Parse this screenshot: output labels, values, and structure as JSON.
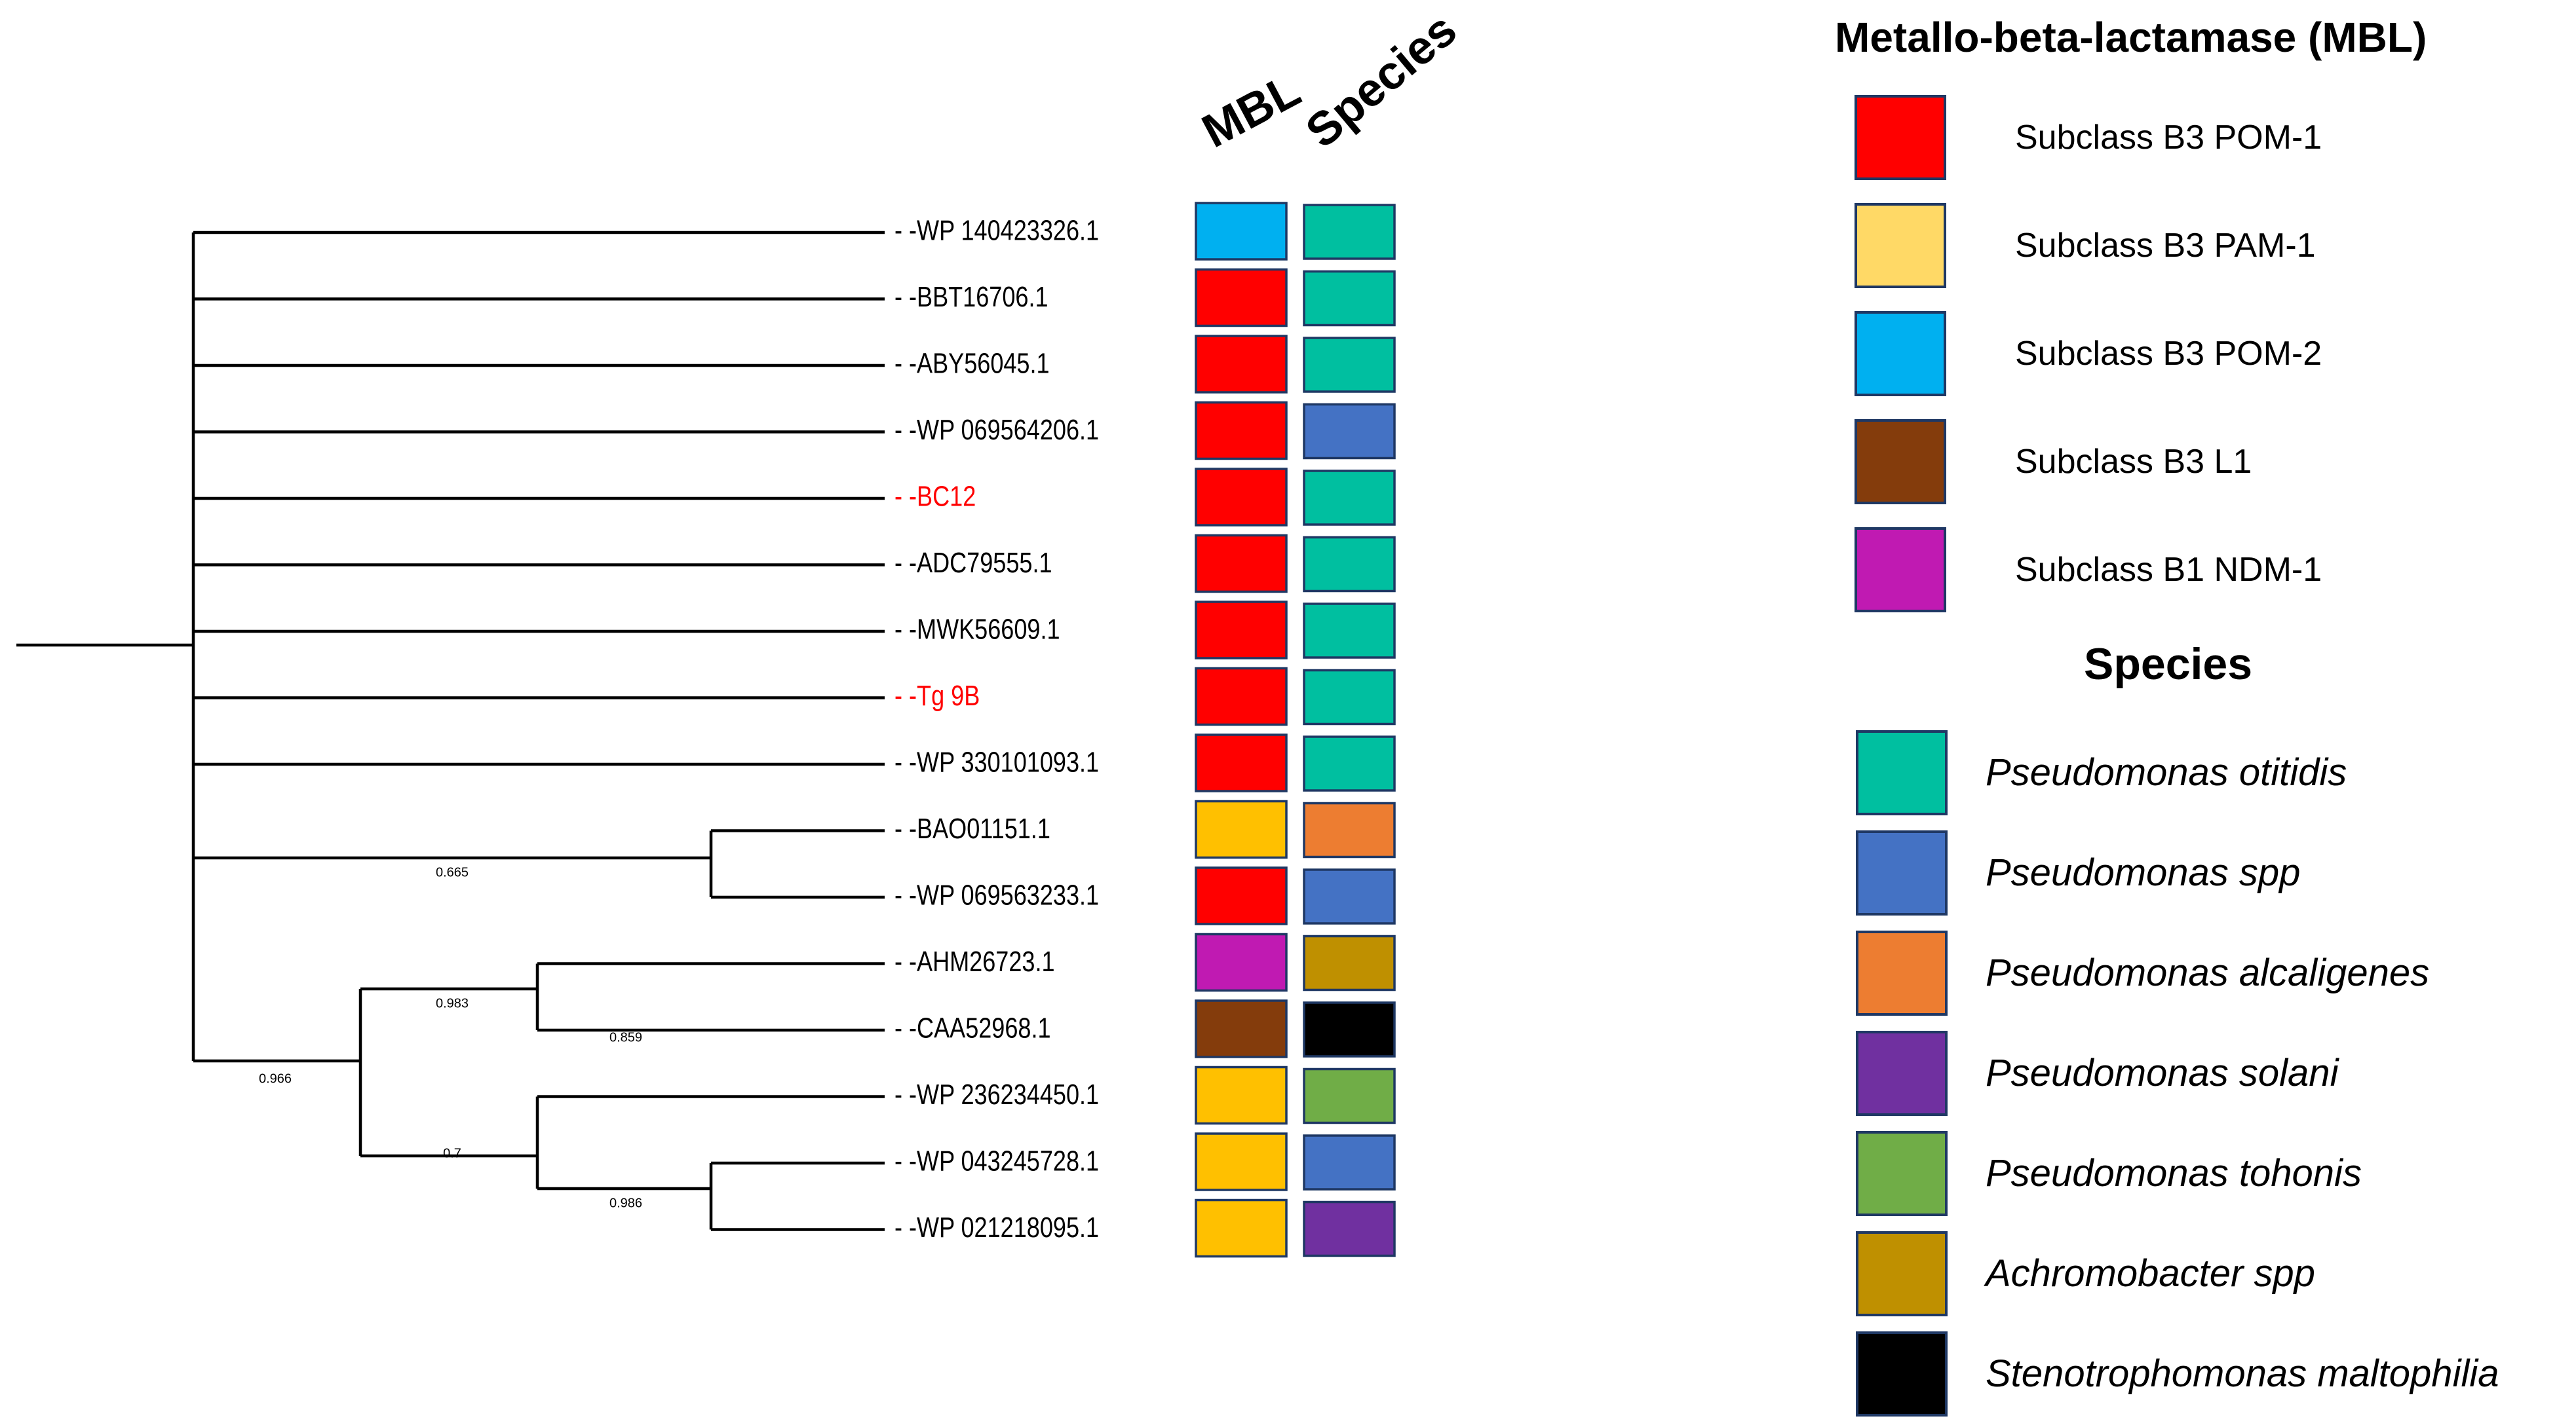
{
  "tree": {
    "leaves": [
      {
        "id": "WP 140423326.1",
        "highlight": false,
        "mbl": "Subclass B3 POM-2",
        "species": "Pseudomonas otitidis"
      },
      {
        "id": "BBT16706.1",
        "highlight": false,
        "mbl": "Subclass B3 POM-1",
        "species": "Pseudomonas otitidis"
      },
      {
        "id": "ABY56045.1",
        "highlight": false,
        "mbl": "Subclass B3 POM-1",
        "species": "Pseudomonas otitidis"
      },
      {
        "id": "WP 069564206.1",
        "highlight": false,
        "mbl": "Subclass B3 POM-1",
        "species": "Pseudomonas spp"
      },
      {
        "id": "BC12",
        "highlight": true,
        "mbl": "Subclass B3 POM-1",
        "species": "Pseudomonas otitidis"
      },
      {
        "id": "ADC79555.1",
        "highlight": false,
        "mbl": "Subclass B3 POM-1",
        "species": "Pseudomonas otitidis"
      },
      {
        "id": "MWK56609.1",
        "highlight": false,
        "mbl": "Subclass B3 POM-1",
        "species": "Pseudomonas otitidis"
      },
      {
        "id": "Tg 9B",
        "highlight": true,
        "mbl": "Subclass B3 POM-1",
        "species": "Pseudomonas otitidis"
      },
      {
        "id": "WP 330101093.1",
        "highlight": false,
        "mbl": "Subclass B3 POM-1",
        "species": "Pseudomonas otitidis"
      },
      {
        "id": "BAO01151.1",
        "highlight": false,
        "mbl": "Subclass B3 PAM-1",
        "species": "Pseudomonas alcaligenes"
      },
      {
        "id": "WP 069563233.1",
        "highlight": false,
        "mbl": "Subclass B3 POM-1",
        "species": "Pseudomonas spp"
      },
      {
        "id": "AHM26723.1",
        "highlight": false,
        "mbl": "Subclass B1 NDM-1",
        "species": "Achromobacter spp"
      },
      {
        "id": "CAA52968.1",
        "highlight": false,
        "mbl": "Subclass B3 L1",
        "species": "Stenotrophomonas maltophilia"
      },
      {
        "id": "WP 236234450.1",
        "highlight": false,
        "mbl": "Subclass B3 PAM-1",
        "species": "Pseudomonas tohonis"
      },
      {
        "id": "WP 043245728.1",
        "highlight": false,
        "mbl": "Subclass B3 PAM-1",
        "species": "Pseudomonas spp"
      },
      {
        "id": "WP 021218095.1",
        "highlight": false,
        "mbl": "Subclass B3 PAM-1",
        "species": "Pseudomonas solani"
      }
    ],
    "support_values": [
      "0.665",
      "0.983",
      "0.859",
      "0.966",
      "0.7",
      "0.986"
    ],
    "leader": "- -",
    "highlight_color": "#ff0000"
  },
  "columns": {
    "mbl_header": "MBL",
    "species_header": "Species"
  },
  "legend": {
    "mbl_title": "Metallo-beta-lactamase (MBL)",
    "species_title": "Species",
    "mbl": [
      {
        "label": "Subclass B3 POM-1",
        "color": "#ff0000"
      },
      {
        "label": "Subclass B3 PAM-1",
        "color": "#ffd966"
      },
      {
        "label": "Subclass B3 POM-2",
        "color": "#00b0f0"
      },
      {
        "label": "Subclass B3 L1",
        "color": "#843c0c"
      },
      {
        "label": "Subclass B1 NDM-1",
        "color": "#c01ab2"
      }
    ],
    "species": [
      {
        "label": "Pseudomonas otitidis",
        "color": "#00bfa0"
      },
      {
        "label": "Pseudomonas spp",
        "color": "#4472c4"
      },
      {
        "label": "Pseudomonas alcaligenes",
        "color": "#ed7d31"
      },
      {
        "label": "Pseudomonas solani",
        "color": "#7030a0"
      },
      {
        "label": "Pseudomonas tohonis",
        "color": "#70ad47"
      },
      {
        "label": "Achromobacter spp",
        "color": "#bf9000"
      },
      {
        "label": "Stenotrophomonas maltophilia",
        "color": "#000000"
      }
    ],
    "cell_mbl_colors": {
      "Subclass B3 PAM-1": "#ffc000"
    }
  }
}
